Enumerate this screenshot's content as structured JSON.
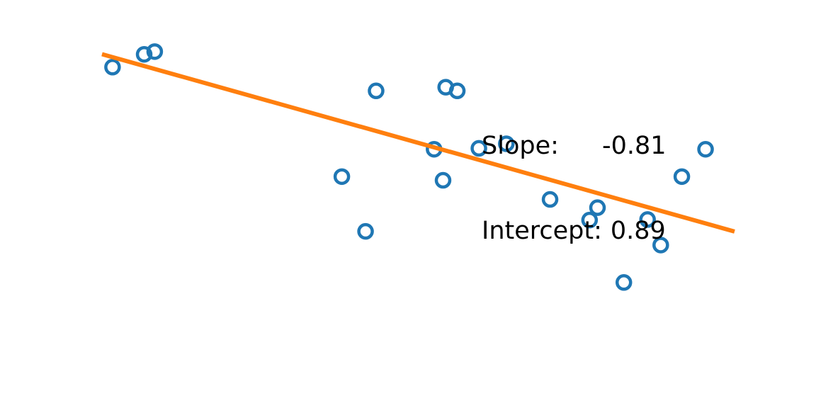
{
  "chart_data": {
    "type": "scatter",
    "xlim": [
      -0.1,
      1.1
    ],
    "ylim": [
      -0.7,
      1.0
    ],
    "grid": false,
    "axes_visible": false,
    "points": [
      {
        "x": -0.08,
        "y": 0.9
      },
      {
        "x": -0.02,
        "y": 0.97
      },
      {
        "x": 0.0,
        "y": 0.985
      },
      {
        "x": 0.355,
        "y": 0.3
      },
      {
        "x": 0.4,
        "y": 0.0
      },
      {
        "x": 0.42,
        "y": 0.77
      },
      {
        "x": 0.53,
        "y": 0.45
      },
      {
        "x": 0.547,
        "y": 0.28
      },
      {
        "x": 0.552,
        "y": 0.79
      },
      {
        "x": 0.574,
        "y": 0.77
      },
      {
        "x": 0.615,
        "y": 0.455
      },
      {
        "x": 0.667,
        "y": 0.48
      },
      {
        "x": 0.75,
        "y": 0.175
      },
      {
        "x": 0.825,
        "y": 0.062
      },
      {
        "x": 0.84,
        "y": 0.13
      },
      {
        "x": 0.89,
        "y": -0.28
      },
      {
        "x": 0.935,
        "y": 0.065
      },
      {
        "x": 0.96,
        "y": -0.075
      },
      {
        "x": 1.0,
        "y": 0.3
      },
      {
        "x": 1.045,
        "y": 0.45
      }
    ],
    "fit_line": {
      "slope": -0.81,
      "intercept": 0.89
    },
    "point_color": "#1f77b4",
    "line_color": "#ff7f0e"
  },
  "annotation": {
    "slope_label": "Slope:",
    "slope_value": "-0.81",
    "intercept_label": "Intercept:",
    "intercept_value": "0.89"
  }
}
